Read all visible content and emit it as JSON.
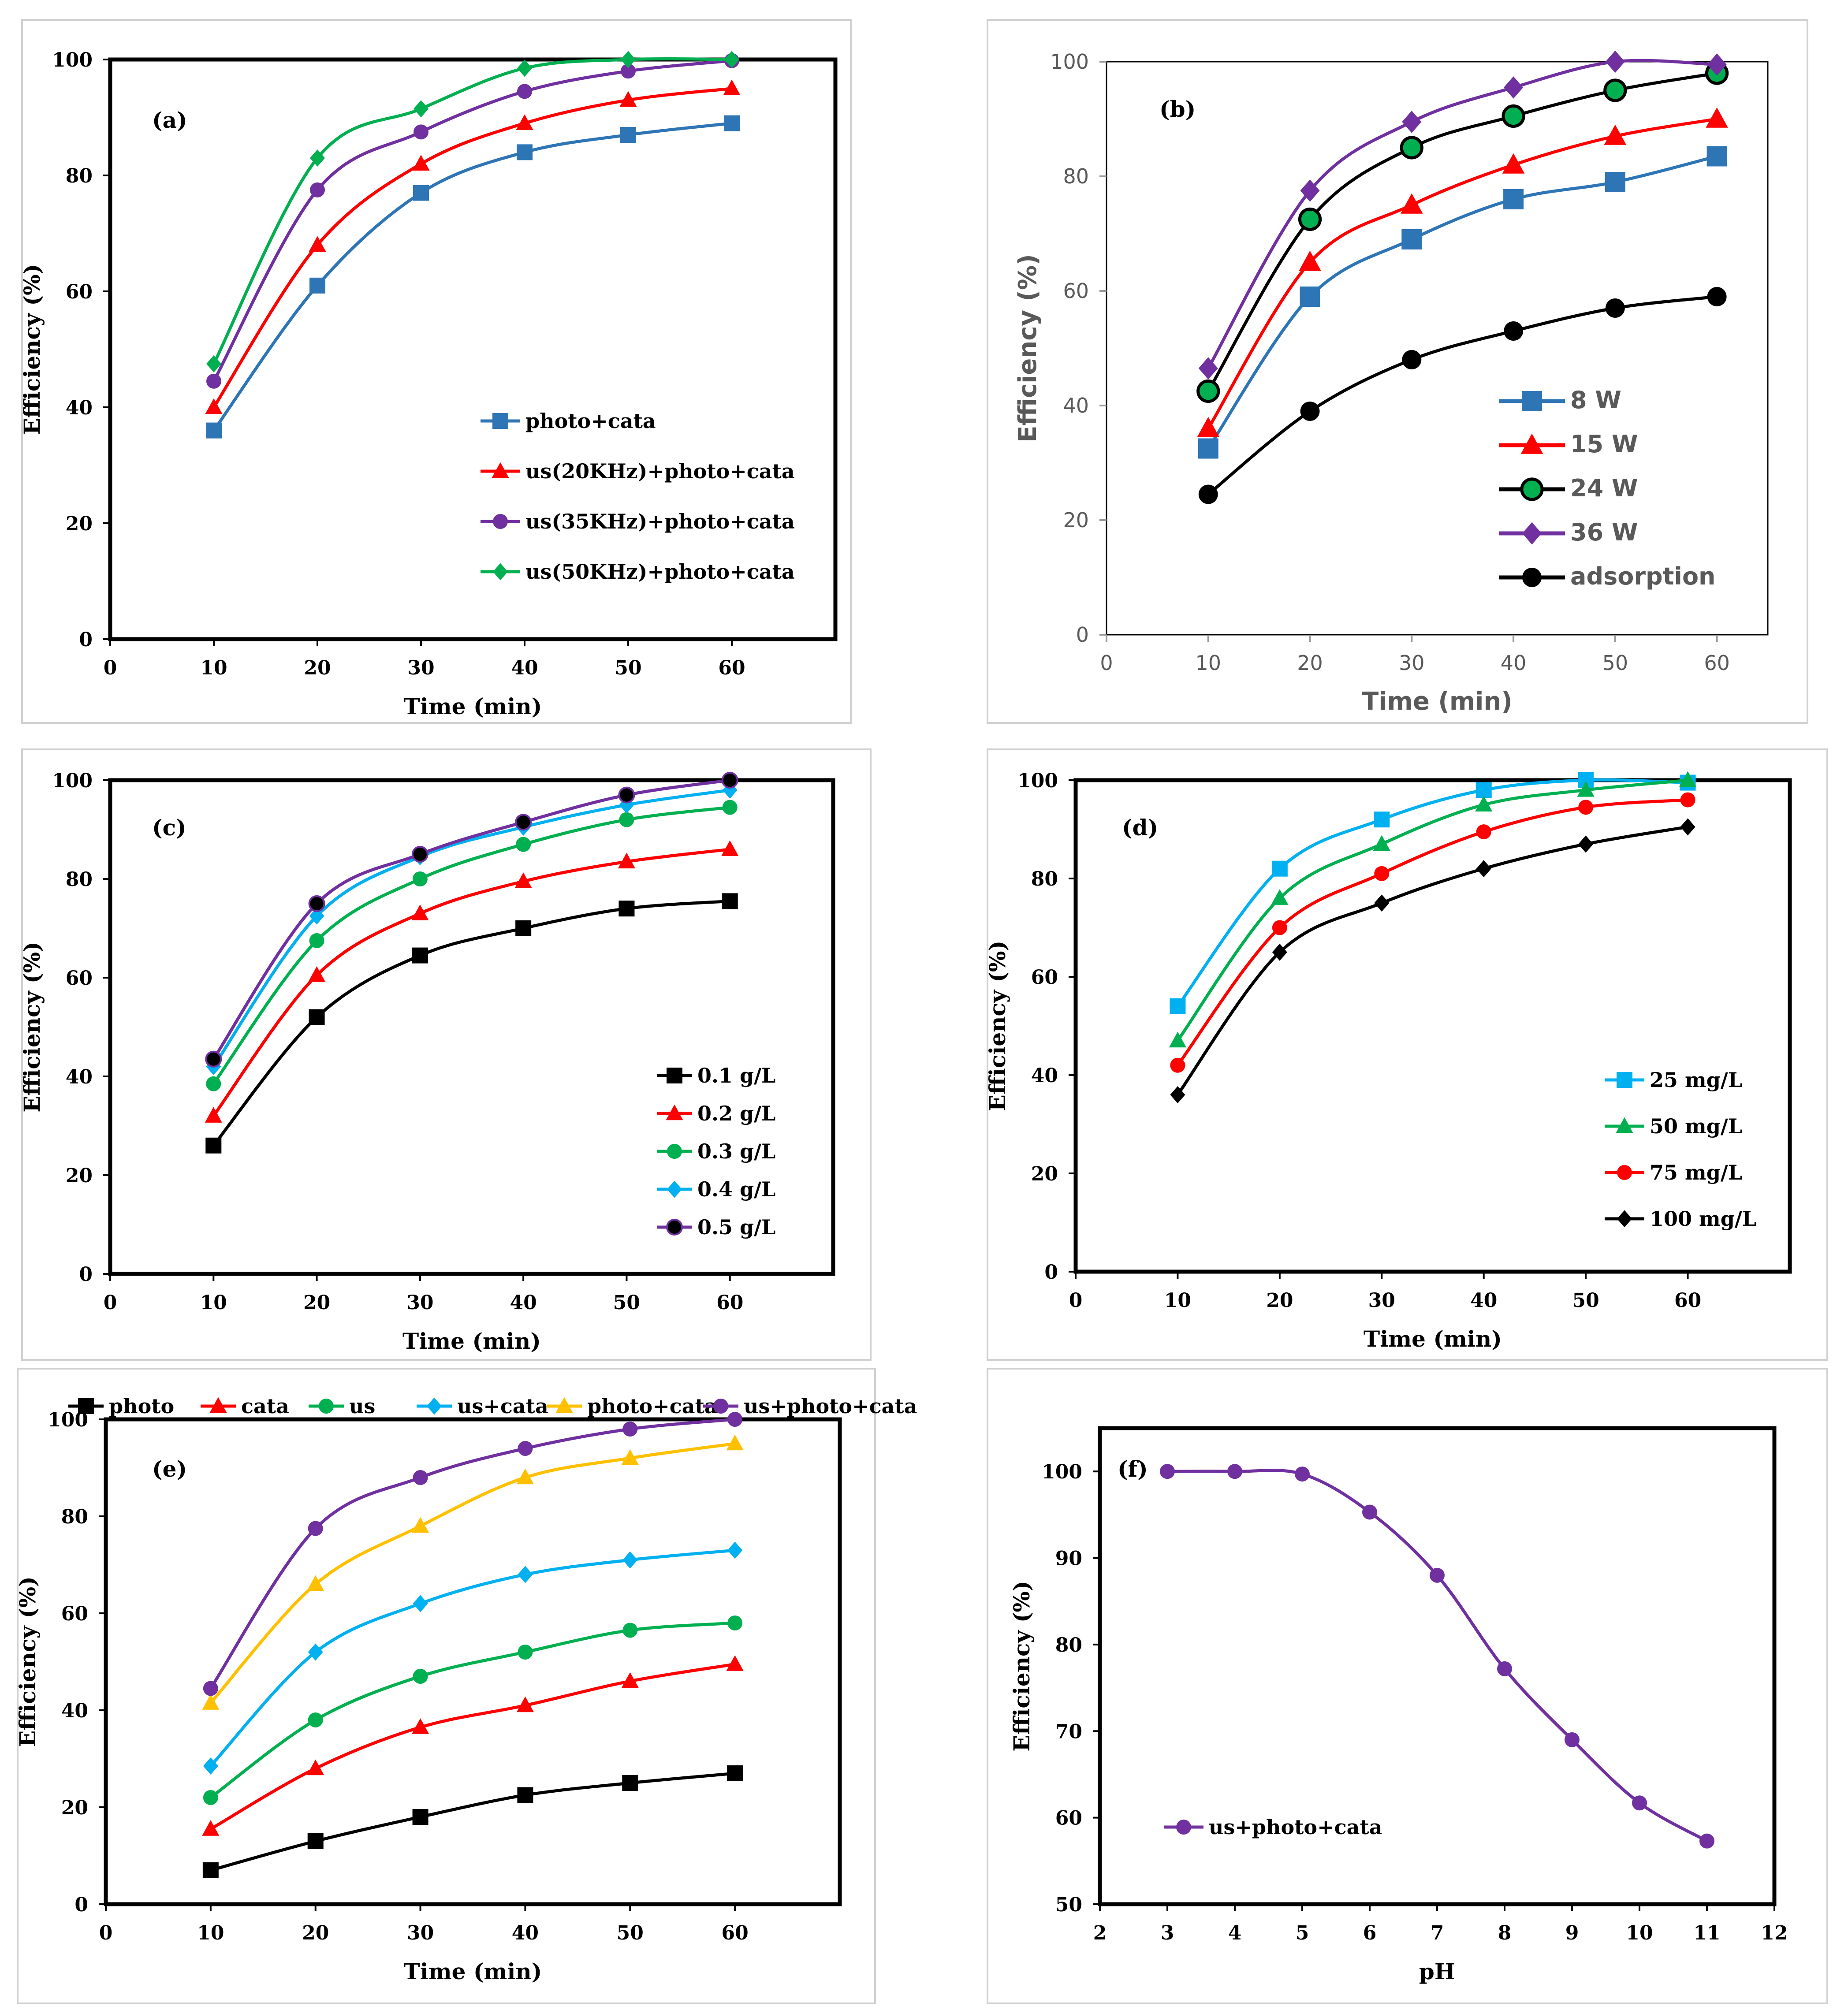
{
  "chart_data": [
    {
      "id": "a",
      "type": "line",
      "panel_label": "(a)",
      "xlabel": "Time (min)",
      "ylabel": "Efficiency (%)",
      "xlim": [
        0,
        70
      ],
      "ylim": [
        0,
        100
      ],
      "xticks": [
        0,
        10,
        20,
        30,
        40,
        50,
        60
      ],
      "yticks": [
        0,
        20,
        40,
        60,
        80,
        100
      ],
      "legend_position": "center-right",
      "x": [
        10,
        20,
        30,
        40,
        50,
        60
      ],
      "series": [
        {
          "name": "photo+cata",
          "color": "#2e75b6",
          "marker": "square",
          "values": [
            36,
            61,
            77,
            84,
            87,
            89
          ]
        },
        {
          "name": "us(20KHz)+photo+cata",
          "color": "#ff0000",
          "marker": "triangle",
          "values": [
            40,
            68,
            82,
            89,
            93,
            95
          ]
        },
        {
          "name": "us(35KHz)+photo+cata",
          "color": "#7030a0",
          "marker": "circle",
          "values": [
            44.5,
            77.5,
            87.5,
            94.5,
            98,
            99.8
          ]
        },
        {
          "name": "us(50KHz)+photo+cata",
          "color": "#00b050",
          "marker": "diamond",
          "values": [
            47.5,
            83,
            91.5,
            98.5,
            100,
            100
          ]
        }
      ]
    },
    {
      "id": "b",
      "type": "line",
      "panel_label": "(b)",
      "xlabel": "Time (min)",
      "ylabel": "Efficiency (%)",
      "xlim": [
        0,
        65
      ],
      "ylim": [
        0,
        100
      ],
      "xticks": [
        0,
        10,
        20,
        30,
        40,
        50,
        60
      ],
      "yticks": [
        0,
        20,
        40,
        60,
        80,
        100
      ],
      "legend_position": "bottom-right",
      "x": [
        10,
        20,
        30,
        40,
        50,
        60
      ],
      "series": [
        {
          "name": "8 W",
          "color": "#2e75b6",
          "marker": "square",
          "values": [
            32.5,
            59,
            69,
            76,
            79,
            83.5
          ]
        },
        {
          "name": "15 W",
          "color": "#ff0000",
          "marker": "triangle",
          "values": [
            36,
            65,
            75,
            82,
            87,
            90
          ]
        },
        {
          "name": "24 W",
          "color": "#000000",
          "marker": "circle-green",
          "values": [
            42.5,
            72.5,
            85,
            90.5,
            95,
            98
          ]
        },
        {
          "name": "36 W",
          "color": "#7030a0",
          "marker": "diamond",
          "values": [
            46.5,
            77.5,
            89.5,
            95.5,
            100,
            99.5
          ]
        },
        {
          "name": "adsorption",
          "color": "#000000",
          "marker": "circle",
          "values": [
            24.5,
            39,
            48,
            53,
            57,
            59
          ]
        }
      ]
    },
    {
      "id": "c",
      "type": "line",
      "panel_label": "(c)",
      "xlabel": "Time (min)",
      "ylabel": "Efficiency (%)",
      "xlim": [
        0,
        70
      ],
      "ylim": [
        0,
        100
      ],
      "xticks": [
        0,
        10,
        20,
        30,
        40,
        50,
        60
      ],
      "yticks": [
        0,
        20,
        40,
        60,
        80,
        100
      ],
      "legend_position": "bottom-right",
      "x": [
        10,
        20,
        30,
        40,
        50,
        60
      ],
      "series": [
        {
          "name": "0.1 g/L",
          "color": "#000000",
          "marker": "square",
          "values": [
            26,
            52,
            64.5,
            70,
            74,
            75.5
          ]
        },
        {
          "name": "0.2 g/L",
          "color": "#ff0000",
          "marker": "triangle",
          "values": [
            32,
            60.5,
            73,
            79.5,
            83.5,
            86
          ]
        },
        {
          "name": "0.3 g/L",
          "color": "#00b050",
          "marker": "circle",
          "values": [
            38.5,
            67.5,
            80,
            87,
            92,
            94.5
          ]
        },
        {
          "name": "0.4 g/L",
          "color": "#00b0f0",
          "marker": "diamond",
          "values": [
            42,
            72.5,
            84.5,
            90.5,
            95,
            98
          ]
        },
        {
          "name": "0.5 g/L",
          "color": "#7030a0",
          "marker": "circle-black",
          "values": [
            43.5,
            75,
            85,
            91.5,
            97,
            100
          ]
        }
      ]
    },
    {
      "id": "d",
      "type": "line",
      "panel_label": "(d)",
      "xlabel": "Time (min)",
      "ylabel": "Efficiency (%)",
      "xlim": [
        0,
        70
      ],
      "ylim": [
        0,
        100
      ],
      "xticks": [
        0,
        10,
        20,
        30,
        40,
        50,
        60
      ],
      "yticks": [
        0,
        20,
        40,
        60,
        80,
        100
      ],
      "legend_position": "bottom-right",
      "x": [
        10,
        20,
        30,
        40,
        50,
        60
      ],
      "series": [
        {
          "name": "25 mg/L",
          "color": "#00b0f0",
          "marker": "square",
          "values": [
            54,
            82,
            92,
            98,
            100,
            99.5
          ]
        },
        {
          "name": "50 mg/L",
          "color": "#00b050",
          "marker": "triangle",
          "values": [
            47,
            76,
            87,
            95,
            98,
            100
          ]
        },
        {
          "name": "75 mg/L",
          "color": "#ff0000",
          "marker": "circle",
          "values": [
            42,
            70,
            81,
            89.5,
            94.5,
            96
          ]
        },
        {
          "name": "100 mg/L",
          "color": "#000000",
          "marker": "diamond",
          "values": [
            36,
            65,
            75,
            82,
            87,
            90.5
          ]
        }
      ]
    },
    {
      "id": "e",
      "type": "line",
      "panel_label": "(e)",
      "xlabel": "Time (min)",
      "ylabel": "Efficiency (%)",
      "xlim": [
        0,
        70
      ],
      "ylim": [
        0,
        100
      ],
      "xticks": [
        0,
        10,
        20,
        30,
        40,
        50,
        60
      ],
      "yticks": [
        0,
        20,
        40,
        60,
        80,
        100
      ],
      "legend_position": "top",
      "x": [
        10,
        20,
        30,
        40,
        50,
        60
      ],
      "series": [
        {
          "name": "photo",
          "color": "#000000",
          "marker": "square",
          "values": [
            7,
            13,
            18,
            22.5,
            25,
            27
          ]
        },
        {
          "name": "cata",
          "color": "#ff0000",
          "marker": "triangle",
          "values": [
            15.5,
            28,
            36.5,
            41,
            46,
            49.5
          ]
        },
        {
          "name": "us",
          "color": "#00b050",
          "marker": "circle",
          "values": [
            22,
            38,
            47,
            52,
            56.5,
            58
          ]
        },
        {
          "name": "us+cata",
          "color": "#00b0f0",
          "marker": "diamond",
          "values": [
            28.5,
            52,
            62,
            68,
            71,
            73
          ]
        },
        {
          "name": "photo+cata",
          "color": "#ffc000",
          "marker": "triangle",
          "values": [
            41.5,
            66,
            78,
            88,
            92,
            95
          ]
        },
        {
          "name": "us+photo+cata",
          "color": "#7030a0",
          "marker": "circle",
          "values": [
            44.5,
            77.5,
            88,
            94,
            98,
            100
          ]
        }
      ]
    },
    {
      "id": "f",
      "type": "line",
      "panel_label": "(f)",
      "xlabel": "pH",
      "ylabel": "Efficiency (%)",
      "xlim": [
        2,
        12
      ],
      "ylim": [
        50,
        105
      ],
      "xticks": [
        2,
        3,
        4,
        5,
        6,
        7,
        8,
        9,
        10,
        11,
        12
      ],
      "yticks": [
        50,
        60,
        70,
        80,
        90,
        100
      ],
      "legend_position": "bottom-left",
      "x": [
        3,
        4,
        5,
        6,
        7,
        8,
        9,
        10,
        11
      ],
      "series": [
        {
          "name": "us+photo+cata",
          "color": "#7030a0",
          "marker": "circle",
          "values": [
            100,
            100,
            99.7,
            95.3,
            88,
            77.2,
            69,
            61.7,
            57.3
          ]
        }
      ]
    }
  ]
}
